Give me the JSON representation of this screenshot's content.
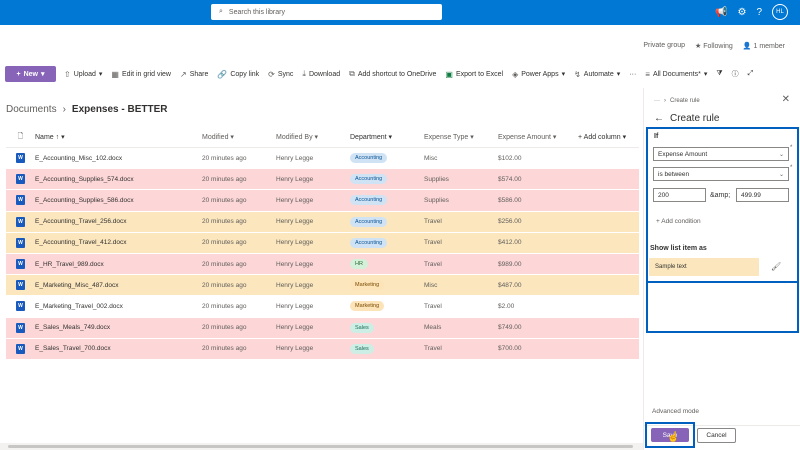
{
  "topbar": {
    "search_placeholder": "Search this library",
    "avatar_initials": "HL"
  },
  "site": {
    "privacy": "Private group",
    "following": "Following",
    "members": "1 member"
  },
  "commands": {
    "new": "New",
    "upload": "Upload",
    "grid": "Edit in grid view",
    "share": "Share",
    "copy": "Copy link",
    "sync": "Sync",
    "download": "Download",
    "shortcut": "Add shortcut to OneDrive",
    "excel": "Export to Excel",
    "powerapps": "Power Apps",
    "automate": "Automate",
    "view": "All Documents*"
  },
  "breadcrumb": {
    "root": "Documents",
    "current": "Expenses - BETTER"
  },
  "columns": {
    "name": "Name",
    "modified": "Modified",
    "modified_by": "Modified By",
    "department": "Department",
    "expense_type": "Expense Type",
    "expense_amount": "Expense Amount",
    "add_column": "+ Add column"
  },
  "rows": [
    {
      "name": "E_Accounting_Misc_102.docx",
      "modified": "20 minutes ago",
      "by": "Henry Legge",
      "dept": "Accounting",
      "type": "Misc",
      "amount": "$102.00",
      "hl": "none"
    },
    {
      "name": "E_Accounting_Supplies_574.docx",
      "modified": "20 minutes ago",
      "by": "Henry Legge",
      "dept": "Accounting",
      "type": "Supplies",
      "amount": "$574.00",
      "hl": "red"
    },
    {
      "name": "E_Accounting_Supplies_586.docx",
      "modified": "20 minutes ago",
      "by": "Henry Legge",
      "dept": "Accounting",
      "type": "Supplies",
      "amount": "$586.00",
      "hl": "red"
    },
    {
      "name": "E_Accounting_Travel_256.docx",
      "modified": "20 minutes ago",
      "by": "Henry Legge",
      "dept": "Accounting",
      "type": "Travel",
      "amount": "$256.00",
      "hl": "yellow"
    },
    {
      "name": "E_Accounting_Travel_412.docx",
      "modified": "20 minutes ago",
      "by": "Henry Legge",
      "dept": "Accounting",
      "type": "Travel",
      "amount": "$412.00",
      "hl": "yellow"
    },
    {
      "name": "E_HR_Travel_989.docx",
      "modified": "20 minutes ago",
      "by": "Henry Legge",
      "dept": "HR",
      "type": "Travel",
      "amount": "$989.00",
      "hl": "red"
    },
    {
      "name": "E_Marketing_Misc_487.docx",
      "modified": "20 minutes ago",
      "by": "Henry Legge",
      "dept": "Marketing",
      "type": "Misc",
      "amount": "$487.00",
      "hl": "yellow"
    },
    {
      "name": "E_Marketing_Travel_002.docx",
      "modified": "20 minutes ago",
      "by": "Henry Legge",
      "dept": "Marketing",
      "type": "Travel",
      "amount": "$2.00",
      "hl": "none"
    },
    {
      "name": "E_Sales_Meals_749.docx",
      "modified": "20 minutes ago",
      "by": "Henry Legge",
      "dept": "Sales",
      "type": "Meals",
      "amount": "$749.00",
      "hl": "red"
    },
    {
      "name": "E_Sales_Travel_700.docx",
      "modified": "20 minutes ago",
      "by": "Henry Legge",
      "dept": "Sales",
      "type": "Travel",
      "amount": "$700.00",
      "hl": "red"
    }
  ],
  "panel": {
    "crumb": "Create rule",
    "title": "Create rule",
    "if_label": "If",
    "field": "Expense Amount",
    "operator": "is between",
    "value_from": "200",
    "and_text": "&amp;",
    "value_to": "499.99",
    "add_condition": "+ Add condition",
    "show_as": "Show list item as",
    "sample": "Sample text",
    "advanced": "Advanced mode",
    "save": "Save",
    "cancel": "Cancel"
  },
  "colors": {
    "accent": "#0078d4",
    "purple": "#8764b8",
    "highlight_red": "#fdd7d7",
    "highlight_yellow": "#fbe6bd",
    "outline_blue": "#0060c0"
  }
}
